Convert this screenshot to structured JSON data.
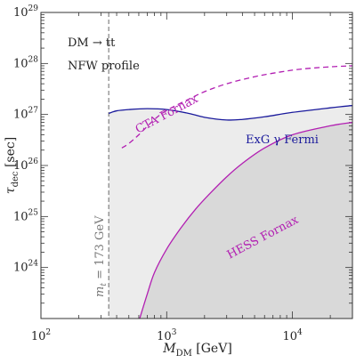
{
  "chart_data": {
    "type": "line",
    "title": "",
    "xlabel": {
      "main": "M",
      "sub": "DM",
      "unit": "[GeV]"
    },
    "ylabel": {
      "main": "τ",
      "sub": "dec",
      "unit": "[sec]"
    },
    "xscale": "log",
    "yscale": "log",
    "xlim": [
      100,
      30000
    ],
    "ylim": [
      1e+23,
      1e+29
    ],
    "x_ticks": [
      {
        "value": 100,
        "base": "10",
        "exp": "2"
      },
      {
        "value": 1000,
        "base": "10",
        "exp": "3"
      },
      {
        "value": 10000,
        "base": "10",
        "exp": "4"
      }
    ],
    "y_ticks": [
      {
        "value": 1e+24,
        "base": "10",
        "exp": "24"
      },
      {
        "value": 1e+25,
        "base": "10",
        "exp": "25"
      },
      {
        "value": 1e+26,
        "base": "10",
        "exp": "26"
      },
      {
        "value": 1e+27,
        "base": "10",
        "exp": "27"
      },
      {
        "value": 1e+28,
        "base": "10",
        "exp": "28"
      },
      {
        "value": 1e+29,
        "base": "10",
        "exp": "29"
      }
    ],
    "annotations": {
      "channel": "DM → tt",
      "profile": "NFW profile",
      "threshold": {
        "x": 173,
        "label": "mt = 173 GeV",
        "label_main": "m",
        "label_sub": "t",
        "label_rest": " = 173 GeV"
      }
    },
    "series": [
      {
        "name": "ExG γ Fermi",
        "style": "solid",
        "color": "#1a1a9c",
        "fill": "#ececec",
        "x": [
          346,
          400,
          500,
          700,
          1000,
          1500,
          2000,
          3000,
          4000,
          6000,
          10000,
          20000,
          30000
        ],
        "y": [
          1.05e+27,
          1.18e+27,
          1.25e+27,
          1.3e+27,
          1.25e+27,
          1.05e+27,
          8.8e+26,
          7.8e+26,
          8e+26,
          9e+26,
          1.1e+27,
          1.35e+27,
          1.5e+27
        ]
      },
      {
        "name": "HESS Fornax",
        "style": "solid",
        "color": "#b21fb2",
        "fill": "#d9d9d9",
        "x": [
          610,
          700,
          800,
          1000,
          1300,
          1700,
          2200,
          3000,
          4000,
          6000,
          10000,
          20000,
          30000
        ],
        "y": [
          1e+23,
          3e+23,
          8e+23,
          2.3e+24,
          6e+24,
          1.4e+25,
          2.8e+25,
          6e+25,
          1.1e+26,
          2.2e+26,
          4e+26,
          6e+26,
          7e+26
        ]
      },
      {
        "name": "CTA Fornax",
        "style": "dashed",
        "color": "#b21fb2",
        "x": [
          440,
          500,
          600,
          800,
          1000,
          1500,
          2000,
          3000,
          5000,
          8000,
          12000,
          20000,
          30000
        ],
        "y": [
          2.2e+26,
          2.7e+26,
          4e+26,
          8e+26,
          1.2e+27,
          2e+27,
          2.8e+27,
          4e+27,
          5.5e+27,
          6.8e+27,
          7.8e+27,
          8.6e+27,
          9e+27
        ]
      }
    ]
  }
}
